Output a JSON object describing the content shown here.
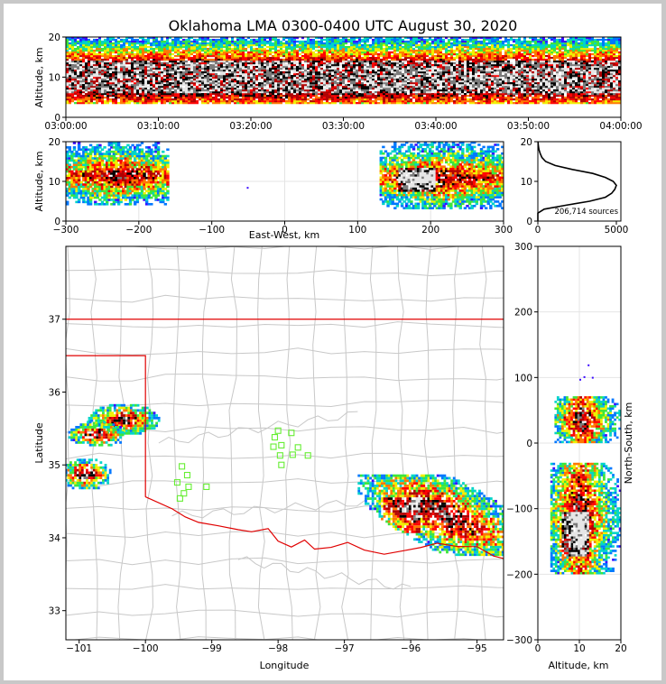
{
  "title": "Oklahoma LMA 0300-0400 UTC August 30, 2020",
  "chart_data": [
    {
      "panel": "time-height",
      "type": "heatmap",
      "ylabel": "Altitude, km",
      "xlim": [
        "03:00:00",
        "04:00:00"
      ],
      "ylim": [
        0,
        20
      ],
      "xticks": [
        "03:00:00",
        "03:10:00",
        "03:20:00",
        "03:30:00",
        "03:40:00",
        "03:50:00",
        "04:00:00"
      ],
      "yticks": [
        0,
        10,
        20
      ],
      "band_km": {
        "sparse_low": 3,
        "dense_low": 6,
        "dense_high": 14,
        "sparse_high": 20
      }
    },
    {
      "panel": "east-west-height",
      "type": "heatmap",
      "xlabel": "East-West, km",
      "ylabel": "Altitude, km",
      "xlim": [
        -300,
        300
      ],
      "ylim": [
        0,
        20
      ],
      "xticks": [
        -300,
        -200,
        -100,
        0,
        100,
        200,
        300
      ],
      "yticks": [
        0,
        10,
        20
      ],
      "clusters": [
        {
          "x_range": [
            -300,
            -160
          ],
          "z_range": [
            4,
            20
          ]
        },
        {
          "x_range": [
            130,
            300
          ],
          "z_range": [
            3,
            20
          ]
        }
      ],
      "grid": true
    },
    {
      "panel": "altitude-histogram",
      "type": "line",
      "xlim": [
        0,
        5000
      ],
      "ylim": [
        0,
        20
      ],
      "xticks": [
        0,
        5000
      ],
      "yticks": [
        0,
        10,
        20
      ],
      "annotation": "206,714 sources",
      "profile": {
        "altitude_km": [
          0,
          2,
          3,
          4,
          5,
          6,
          7,
          8,
          9,
          10,
          11,
          12,
          13,
          14,
          15,
          16,
          17,
          18,
          19,
          20
        ],
        "count": [
          0,
          0,
          400,
          1800,
          3300,
          4300,
          4700,
          4900,
          5000,
          4800,
          4300,
          3500,
          2200,
          1100,
          500,
          260,
          150,
          70,
          30,
          10
        ]
      }
    },
    {
      "panel": "plan-view",
      "type": "heatmap",
      "xlabel": "Longitude",
      "ylabel": "Latitude",
      "xlim": [
        -101.2,
        -94.6
      ],
      "ylim": [
        32.6,
        38.0
      ],
      "xticks": [
        -101,
        -100,
        -99,
        -98,
        -97,
        -96,
        -95
      ],
      "yticks": [
        33,
        34,
        35,
        36,
        37
      ],
      "clusters": [
        {
          "lon": -100.35,
          "lat": 35.6,
          "w": 0.55,
          "h": 0.22
        },
        {
          "lon": -100.75,
          "lat": 35.4,
          "w": 0.45,
          "h": 0.18
        },
        {
          "lon": -100.92,
          "lat": 34.85,
          "w": 0.4,
          "h": 0.22
        },
        {
          "lon": -95.5,
          "lat": 34.3,
          "w": 1.3,
          "h": 0.55
        }
      ],
      "stations": [
        {
          "lon": -99.45,
          "lat": 34.98
        },
        {
          "lon": -99.37,
          "lat": 34.86
        },
        {
          "lon": -99.52,
          "lat": 34.76
        },
        {
          "lon": -99.35,
          "lat": 34.7
        },
        {
          "lon": -99.42,
          "lat": 34.61
        },
        {
          "lon": -99.48,
          "lat": 34.54
        },
        {
          "lon": -99.08,
          "lat": 34.7
        },
        {
          "lon": -98.0,
          "lat": 35.47
        },
        {
          "lon": -98.05,
          "lat": 35.38
        },
        {
          "lon": -98.07,
          "lat": 35.25
        },
        {
          "lon": -97.95,
          "lat": 35.27
        },
        {
          "lon": -97.8,
          "lat": 35.44
        },
        {
          "lon": -97.7,
          "lat": 35.24
        },
        {
          "lon": -97.78,
          "lat": 35.14
        },
        {
          "lon": -97.55,
          "lat": 35.13
        },
        {
          "lon": -97.97,
          "lat": 35.13
        },
        {
          "lon": -97.95,
          "lat": 35.0
        }
      ]
    },
    {
      "panel": "north-south-height",
      "type": "heatmap",
      "xlabel": "Altitude, km",
      "ylabel": "North-South, km",
      "xlim": [
        0,
        20
      ],
      "ylim": [
        -300,
        300
      ],
      "xticks": [
        0,
        10,
        20
      ],
      "yticks": [
        -300,
        -200,
        -100,
        0,
        100,
        200,
        300
      ],
      "clusters": [
        {
          "y_range": [
            -200,
            -30
          ],
          "z_range": [
            3,
            20
          ]
        },
        {
          "y_range": [
            0,
            70
          ],
          "z_range": [
            4,
            20
          ]
        }
      ],
      "grid": true
    }
  ],
  "colors": {
    "frame_border": "#c8c8c8",
    "state_border": "#e00000",
    "county_lines": "#c8c8c8",
    "station_marker": "#66ee33",
    "density_scale": [
      "#3a0aff",
      "#0077ff",
      "#00d4c8",
      "#3ce63c",
      "#f0f000",
      "#ff7700",
      "#ff0000",
      "#b00000",
      "#000000",
      "#7a7a7a",
      "#e6e6e6"
    ]
  }
}
